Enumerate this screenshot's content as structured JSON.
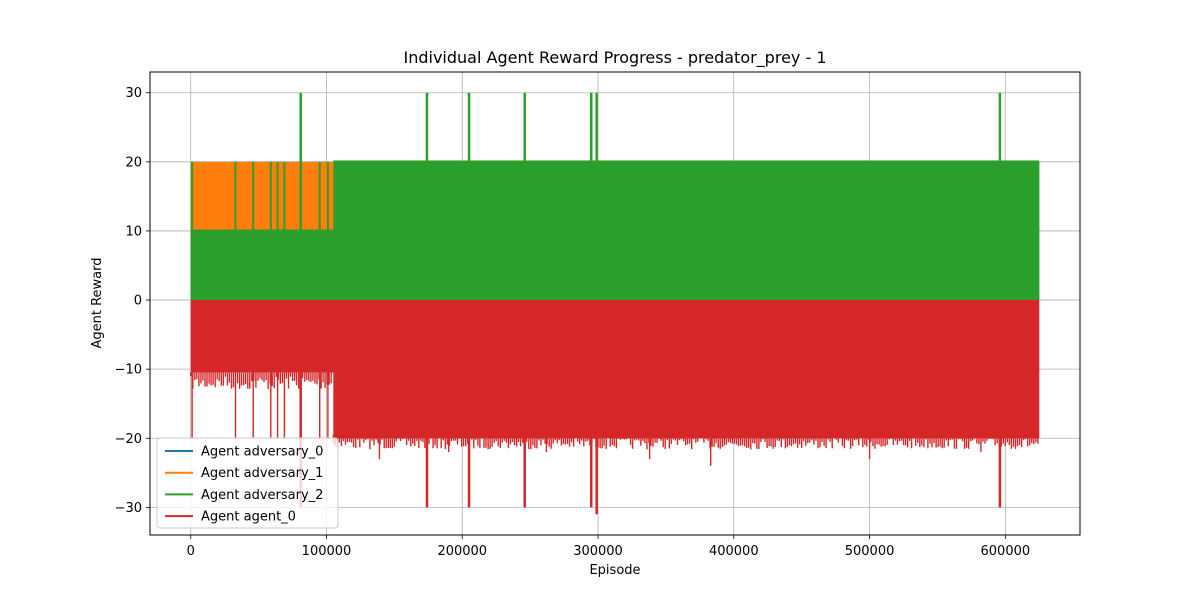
{
  "chart_data": {
    "type": "line",
    "title": "Individual Agent Reward Progress - predator_prey - 1",
    "xlabel": "Episode",
    "ylabel": "Agent Reward",
    "xlim": [
      -30000,
      655000
    ],
    "ylim": [
      -34,
      33
    ],
    "x_ticks": [
      0,
      100000,
      200000,
      300000,
      400000,
      500000,
      600000
    ],
    "x_tick_labels": [
      "0",
      "100000",
      "200000",
      "300000",
      "400000",
      "500000",
      "600000"
    ],
    "y_ticks": [
      -30,
      -20,
      -10,
      0,
      10,
      20,
      30
    ],
    "y_tick_labels": [
      "−30",
      "−20",
      "−10",
      "0",
      "10",
      "20",
      "30"
    ],
    "grid": true,
    "legend_position": "lower-left",
    "episode_range": [
      0,
      625000
    ],
    "series": [
      {
        "name": "Agent adversary_0",
        "color": "#1f77b4",
        "band": [
          0,
          20
        ],
        "spikes": []
      },
      {
        "name": "Agent adversary_1",
        "color": "#ff7f0e",
        "band": [
          0,
          20
        ],
        "spikes": []
      },
      {
        "name": "Agent adversary_2",
        "color": "#2ca02c",
        "band": [
          0,
          20
        ],
        "spikes": [
          [
            81000,
            30
          ],
          [
            174000,
            30
          ],
          [
            205000,
            30
          ],
          [
            246000,
            30
          ],
          [
            295000,
            30
          ],
          [
            299000,
            30
          ],
          [
            596000,
            30
          ]
        ]
      },
      {
        "name": "Agent agent_0",
        "color": "#d62728",
        "band": [
          -20,
          0
        ],
        "spikes": [
          [
            81000,
            -30
          ],
          [
            174000,
            -30
          ],
          [
            205000,
            -30
          ],
          [
            246000,
            -30
          ],
          [
            295000,
            -30
          ],
          [
            299000,
            -31
          ],
          [
            596000,
            -30
          ]
        ]
      }
    ]
  }
}
